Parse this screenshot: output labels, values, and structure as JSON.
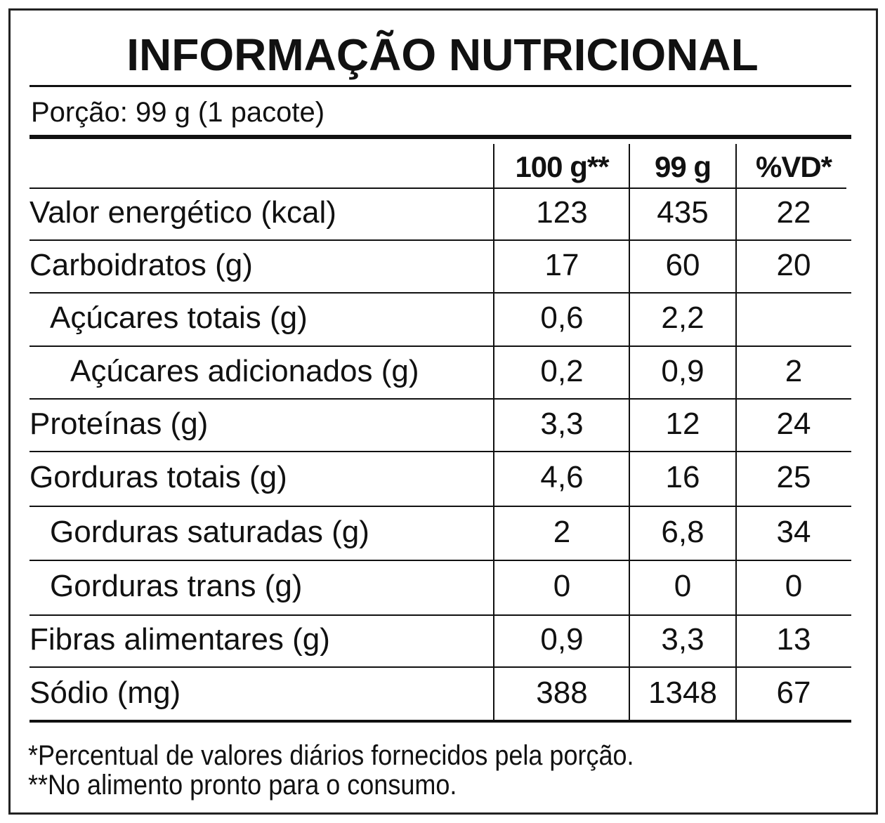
{
  "title": "INFORMAÇÃO NUTRICIONAL",
  "portion": "Porção: 99 g (1 pacote)",
  "table": {
    "header": [
      "100 g**",
      "99 g",
      "%VD*"
    ],
    "rows": [
      [
        "Valor energético (kcal)",
        "123",
        "435",
        "22"
      ],
      [
        "Carboidratos (g)",
        "17",
        "60",
        "20"
      ],
      [
        "Açúcares totais (g)",
        "0,6",
        "2,2",
        null
      ],
      [
        "Açúcares adicionados (g)",
        "0,2",
        "0,9",
        "2"
      ],
      [
        "Proteínas (g)",
        "3,3",
        "12",
        "24"
      ],
      [
        "Gorduras totais (g)",
        "4,6",
        "16",
        "25"
      ],
      [
        "Gorduras saturadas (g)",
        "2",
        "6,8",
        "34"
      ],
      [
        "Gorduras trans (g)",
        "0",
        "0",
        "0"
      ],
      [
        "Fibras alimentares (g)",
        "0,9",
        "3,3",
        "13"
      ],
      [
        "Sódio (mg)",
        "388",
        "1348",
        "67"
      ]
    ]
  },
  "footnotes": [
    "*Percentual de valores diários fornecidos pela porção.",
    "**No alimento pronto para o consumo."
  ]
}
